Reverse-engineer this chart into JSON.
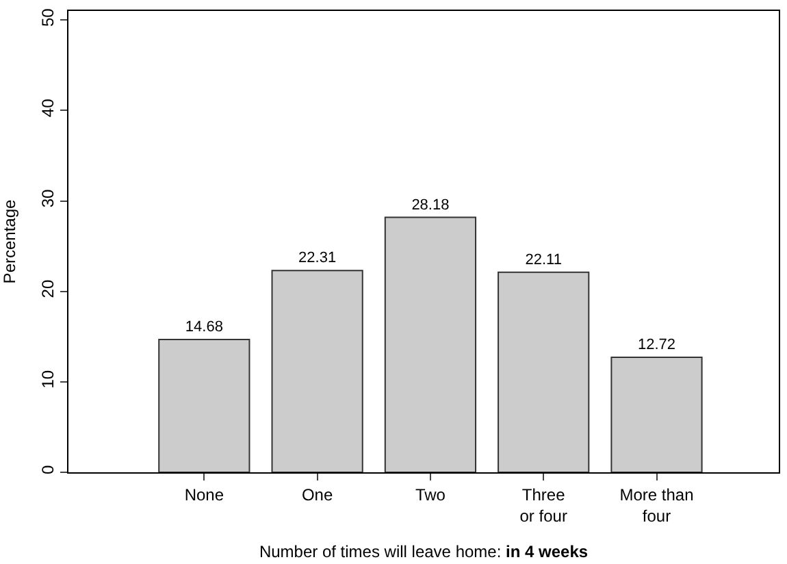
{
  "chart_data": {
    "type": "bar",
    "xlabel": "Number of times will leave home: in 4 weeks",
    "ylabel": "Percentage",
    "categories": [
      "None",
      "One",
      "Two",
      "Three\nor four",
      "More than\nfour"
    ],
    "values": [
      14.68,
      22.31,
      28.18,
      22.11,
      12.72
    ],
    "color": "#cccccc",
    "data_labels": true,
    "ylim": [
      0,
      51
    ],
    "yticks": [
      0,
      10,
      20,
      30,
      40,
      50
    ]
  }
}
